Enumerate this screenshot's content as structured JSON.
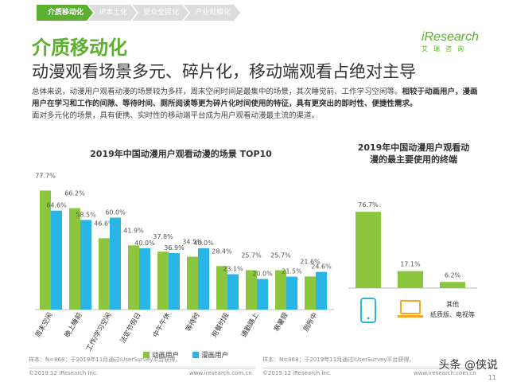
{
  "tabs": [
    {
      "label": "介质移动化",
      "active": true
    },
    {
      "label": "IP本土化",
      "active": false
    },
    {
      "label": "受众全民化",
      "active": false
    },
    {
      "label": "产业规模化",
      "active": false
    }
  ],
  "brand_title": "介质移动化",
  "logo": {
    "main": "iResearch",
    "sub": "艾瑞咨询"
  },
  "headline": "动漫观看场景多元、碎片化，移动端观看占绝对主导",
  "summary": {
    "p1_normal": "总体来说，动漫用户观看动漫的场景较为多样，周末空闲时间是最集中的场景，其次睡觉前、工作学习空闲等。",
    "p1_bold": "相较于动画用户，漫画用户在学习和工作的间隙、等待时间、厕所阅读等更为碎片化时间使用的特征，具有更突出的即时性、便捷性需求。",
    "p2": "面对多元化的场景，具有便携、实时性的移动端平台成为用户观看动漫最主流的渠道。"
  },
  "colors": {
    "green": "#8cc63f",
    "cyan": "#29b6e6",
    "brand": "#5bb030"
  },
  "chart_data": [
    {
      "type": "bar",
      "title": "2019年中国动漫用户观看动漫的场景 TOP10",
      "categories": [
        "周末空闲",
        "晚上睡前",
        "工作/学习空闲",
        "法定节假日",
        "中午午休",
        "等待时",
        "用餐时段",
        "通勤路上",
        "寒暑假",
        "厕所中"
      ],
      "series": [
        {
          "name": "动画用户",
          "color": "#8cc63f",
          "values": [
            77.7,
            66.2,
            46.6,
            41.9,
            37.8,
            34.5,
            28.4,
            25.7,
            25.7,
            21.6
          ]
        },
        {
          "name": "漫画用户",
          "color": "#29b6e6",
          "values": [
            64.6,
            58.5,
            60.0,
            40.0,
            36.9,
            40.0,
            23.1,
            20.0,
            21.5,
            24.6
          ]
        }
      ],
      "unit": "%",
      "ylim": [
        0,
        80
      ],
      "legend": "bottom",
      "note": "样本：N=868；于2019年11月通过iUserSurvey平台获得。"
    },
    {
      "type": "bar",
      "title": "2019年中国动漫用户观看动漫的最主要使用的终端",
      "categories": [
        "mobile-phone-icon",
        "laptop-icon",
        "其他\n纸质版、电视等"
      ],
      "category_labels": [
        "",
        "",
        "其他",
        "纸质版、电视等"
      ],
      "values": [
        76.7,
        17.1,
        6.2
      ],
      "color": "#8cc63f",
      "unit": "%",
      "ylim": [
        0,
        80
      ],
      "note": "样本：N=868；于2019年11月通过iUserSurvey平台获得。"
    }
  ],
  "footer": {
    "left_copyright": "©2019.12 iResearch Inc.",
    "left_url": "www.iresearch.com.cn",
    "right_copyright": "©2019.12 iResearch Inc.",
    "right_url": "www.iresearch.com.cn",
    "page": "11",
    "watermark": "头条 @侠说"
  }
}
